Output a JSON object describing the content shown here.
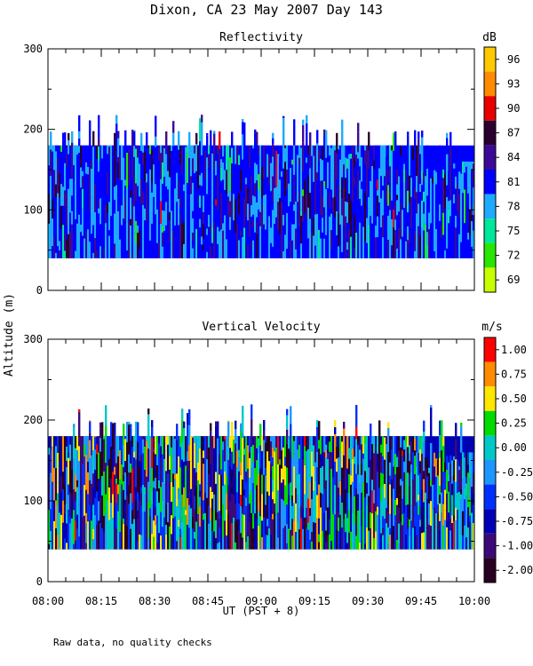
{
  "title": "Dixon, CA 23 May 2007  Day 143",
  "ylabel": "Altitude (m)",
  "xlabel": "UT  (PST + 8)",
  "footnote": "Raw data, no quality checks",
  "x_range": [
    "08:00",
    "10:00"
  ],
  "x_ticks": [
    "08:00",
    "08:15",
    "08:30",
    "08:45",
    "09:00",
    "09:15",
    "09:30",
    "09:45",
    "10:00"
  ],
  "chart_data": [
    {
      "type": "heatmap",
      "title": "Reflectivity",
      "ylim": [
        0,
        300
      ],
      "y_ticks": [
        "300",
        "200",
        "100",
        "0"
      ],
      "colorbar": {
        "unit": "dB",
        "labels": [
          "96",
          "93",
          "90",
          "87",
          "84",
          "81",
          "78",
          "75",
          "72",
          "69"
        ],
        "colors_top_to_bottom": [
          "#ffc800",
          "#ff8c00",
          "#e80000",
          "#2a0030",
          "#3c0a96",
          "#0000ff",
          "#1eaaff",
          "#00e69a",
          "#28e600",
          "#c8ff00"
        ]
      },
      "data_summary": {
        "echo_base_m": 40,
        "typical_echo_top_m": 180,
        "max_echo_top_m": 220,
        "dominant_values_db": [
          81,
          78,
          84
        ]
      }
    },
    {
      "type": "heatmap",
      "title": "Vertical Velocity",
      "ylim": [
        0,
        300
      ],
      "y_ticks": [
        "300",
        "200",
        "100",
        "0"
      ],
      "colorbar": {
        "unit": "m/s",
        "labels": [
          "1.00",
          "0.75",
          "0.50",
          "0.25",
          "0.00",
          "-0.25",
          "-0.50",
          "-0.75",
          "-1.00",
          "-2.00"
        ],
        "colors_top_to_bottom": [
          "#ff0000",
          "#ff8c00",
          "#ffe600",
          "#00dc00",
          "#00c8c8",
          "#1e96ff",
          "#0030ff",
          "#0000b4",
          "#3c0a78",
          "#280020"
        ]
      },
      "data_summary": {
        "echo_base_m": 40,
        "typical_echo_top_m": 180,
        "max_echo_top_m": 220,
        "velocity_range_ms": [
          -2.0,
          1.0
        ]
      }
    }
  ]
}
